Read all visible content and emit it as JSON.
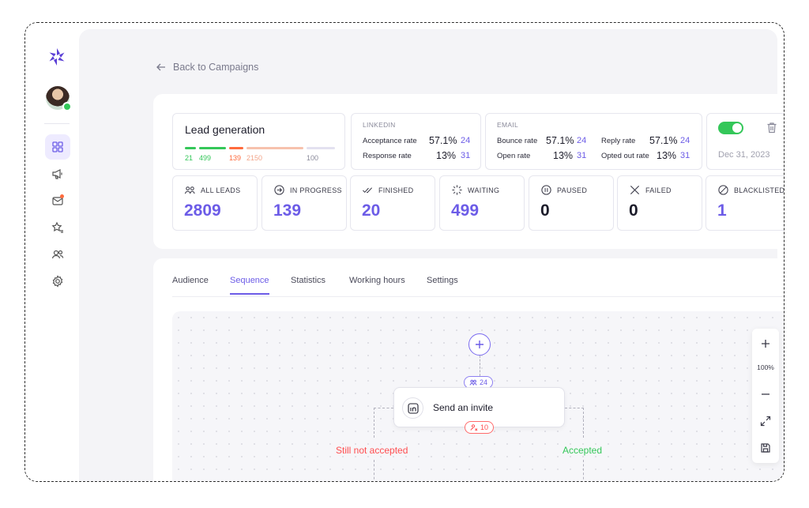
{
  "nav": {
    "back_label": "Back to Campaigns",
    "items": [
      {
        "name": "dashboard",
        "active": true
      },
      {
        "name": "campaigns",
        "active": false
      },
      {
        "name": "inbox",
        "active": false,
        "notification": true
      },
      {
        "name": "favorites",
        "active": false
      },
      {
        "name": "contacts",
        "active": false
      },
      {
        "name": "settings",
        "active": false
      }
    ]
  },
  "campaign": {
    "title": "Lead generation",
    "progress": [
      {
        "value": "21",
        "color": "#34c759"
      },
      {
        "value": "499",
        "color": "#34c759"
      },
      {
        "value": "139",
        "color": "#ff6b3d"
      },
      {
        "value": "2150",
        "color": "#f7b59e"
      },
      {
        "value": "100",
        "color": "#8a8a9a"
      }
    ],
    "enabled": true,
    "date": "Dec 31, 2023"
  },
  "linkedin": {
    "label": "LINKEDIN",
    "rows": [
      {
        "label": "Acceptance rate",
        "pct": "57.1%",
        "count": "24"
      },
      {
        "label": "Response rate",
        "pct": "13%",
        "count": "31"
      }
    ]
  },
  "email": {
    "label": "EMAIL",
    "left": [
      {
        "label": "Bounce rate",
        "pct": "57.1%",
        "count": "24"
      },
      {
        "label": "Open rate",
        "pct": "13%",
        "count": "31"
      }
    ],
    "right": [
      {
        "label": "Reply rate",
        "pct": "57.1%",
        "count": "24"
      },
      {
        "label": "Opted out rate",
        "pct": "13%",
        "count": "31"
      }
    ]
  },
  "stats": [
    {
      "label": "ALL LEADS",
      "value": "2809",
      "color": "#6c5ce7",
      "icon": "users-icon"
    },
    {
      "label": "IN PROGRESS",
      "value": "139",
      "color": "#6c5ce7",
      "icon": "arrow-circle-icon"
    },
    {
      "label": "FINISHED",
      "value": "20",
      "color": "#6c5ce7",
      "icon": "double-check-icon"
    },
    {
      "label": "WAITING",
      "value": "499",
      "color": "#6c5ce7",
      "icon": "loader-icon"
    },
    {
      "label": "PAUSED",
      "value": "0",
      "color": "#1d1d2b",
      "icon": "pause-icon"
    },
    {
      "label": "FAILED",
      "value": "0",
      "color": "#1d1d2b",
      "icon": "x-icon"
    },
    {
      "label": "BLACKLISTED",
      "value": "1",
      "color": "#6c5ce7",
      "icon": "block-icon"
    }
  ],
  "tabs": [
    {
      "label": "Audience",
      "active": false
    },
    {
      "label": "Sequence",
      "active": true
    },
    {
      "label": "Statistics",
      "active": false
    },
    {
      "label": "Working hours",
      "active": false
    },
    {
      "label": "Settings",
      "active": false
    }
  ],
  "sequence": {
    "entry_count": "24",
    "step_label": "Send an invite",
    "step_count": "10",
    "branch_left": "Still not accepted",
    "branch_right": "Accepted"
  },
  "zoom": {
    "level": "100%"
  },
  "colors": {
    "accent": "#6c5ce7",
    "success": "#34c759",
    "danger": "#ff4d4f"
  }
}
